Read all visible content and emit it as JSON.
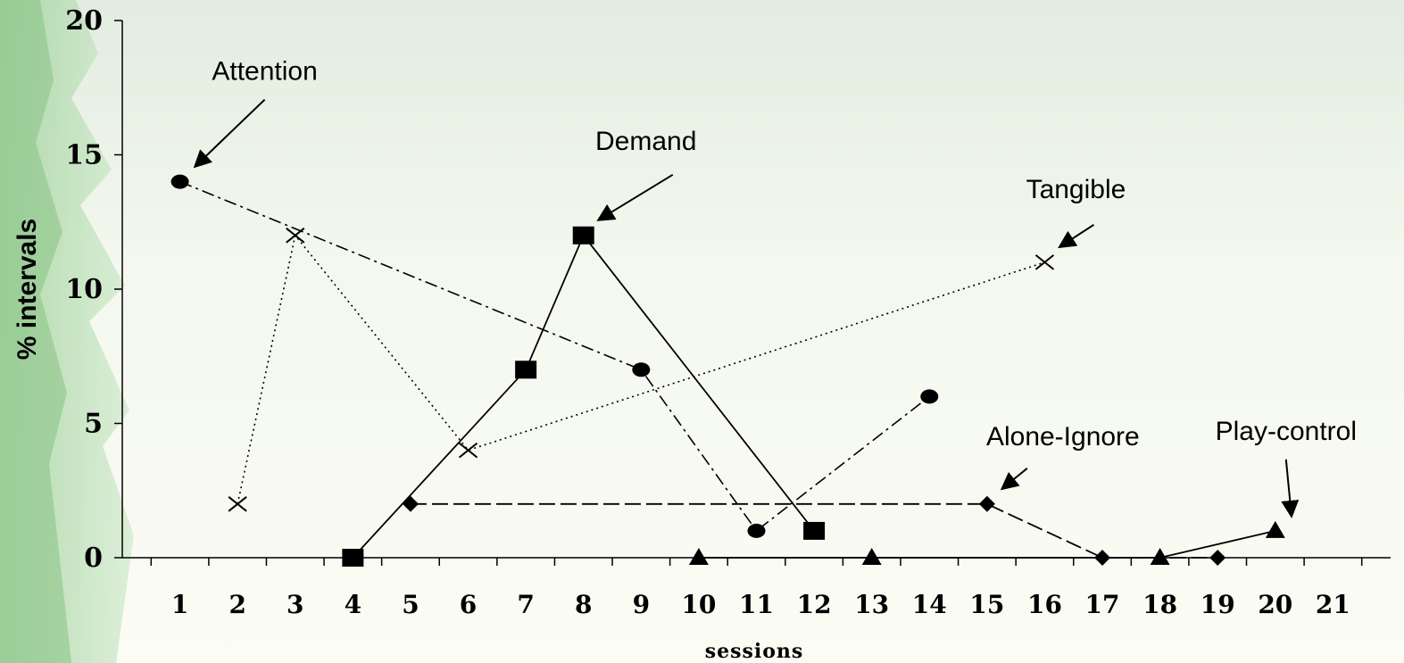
{
  "chart_data": {
    "type": "line",
    "xlabel": "sessions",
    "ylabel": "% intervals",
    "x_ticks": [
      1,
      2,
      3,
      4,
      5,
      6,
      7,
      8,
      9,
      10,
      11,
      12,
      13,
      14,
      15,
      16,
      17,
      18,
      19,
      20,
      21
    ],
    "y_ticks": [
      0,
      5,
      10,
      15,
      20
    ],
    "xlim": [
      0,
      22
    ],
    "ylim": [
      0,
      20
    ],
    "grid": false,
    "series": [
      {
        "name": "Attention",
        "marker": "circle",
        "dash": "dashdot",
        "points": [
          [
            1,
            14
          ],
          [
            9,
            7
          ],
          [
            11,
            1
          ],
          [
            14,
            6
          ]
        ]
      },
      {
        "name": "Demand",
        "marker": "square",
        "dash": "solid",
        "points": [
          [
            4,
            0
          ],
          [
            7,
            7
          ],
          [
            8,
            12
          ],
          [
            12,
            1
          ]
        ]
      },
      {
        "name": "Tangible",
        "marker": "x",
        "dash": "dotted",
        "points": [
          [
            2,
            2
          ],
          [
            3,
            12
          ],
          [
            6,
            4
          ],
          [
            16,
            11
          ]
        ]
      },
      {
        "name": "Alone-Ignore",
        "marker": "diamond",
        "dash": "dashed",
        "points": [
          [
            5,
            2
          ],
          [
            15,
            2
          ],
          [
            17,
            0
          ],
          [
            19,
            0
          ]
        ]
      },
      {
        "name": "Play-control",
        "marker": "triangle",
        "dash": "solid",
        "points": [
          [
            10,
            0
          ],
          [
            13,
            0
          ],
          [
            18,
            0
          ],
          [
            20,
            1
          ]
        ]
      }
    ],
    "annotations": [
      {
        "text": "Attention",
        "target": [
          1,
          14
        ]
      },
      {
        "text": "Demand",
        "target": [
          8,
          12
        ]
      },
      {
        "text": "Tangible",
        "target": [
          16,
          11
        ]
      },
      {
        "text": "Alone-Ignore",
        "target": [
          15,
          2
        ]
      },
      {
        "text": "Play-control",
        "target": [
          20,
          1
        ]
      }
    ]
  }
}
